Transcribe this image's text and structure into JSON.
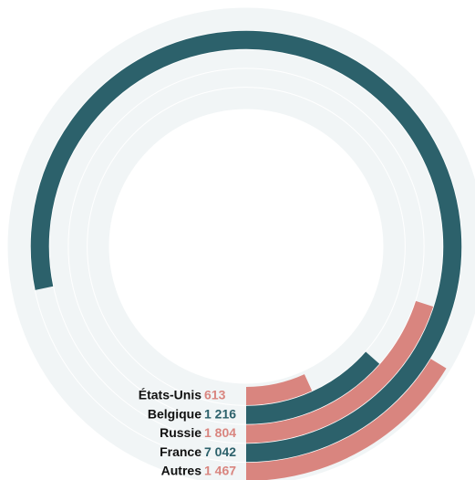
{
  "chart_data": {
    "type": "radial_bar",
    "categories": [
      "États-Unis",
      "Belgique",
      "Russie",
      "France",
      "Autres"
    ],
    "values": [
      613,
      1216,
      1804,
      7042,
      1467
    ],
    "value_labels": [
      "613",
      "1 216",
      "1 804",
      "7 042",
      "1 467"
    ],
    "colors": [
      "#d9857f",
      "#2c616b",
      "#d9857f",
      "#2c616b",
      "#d9857f"
    ],
    "ylim": [
      0,
      9000
    ]
  }
}
